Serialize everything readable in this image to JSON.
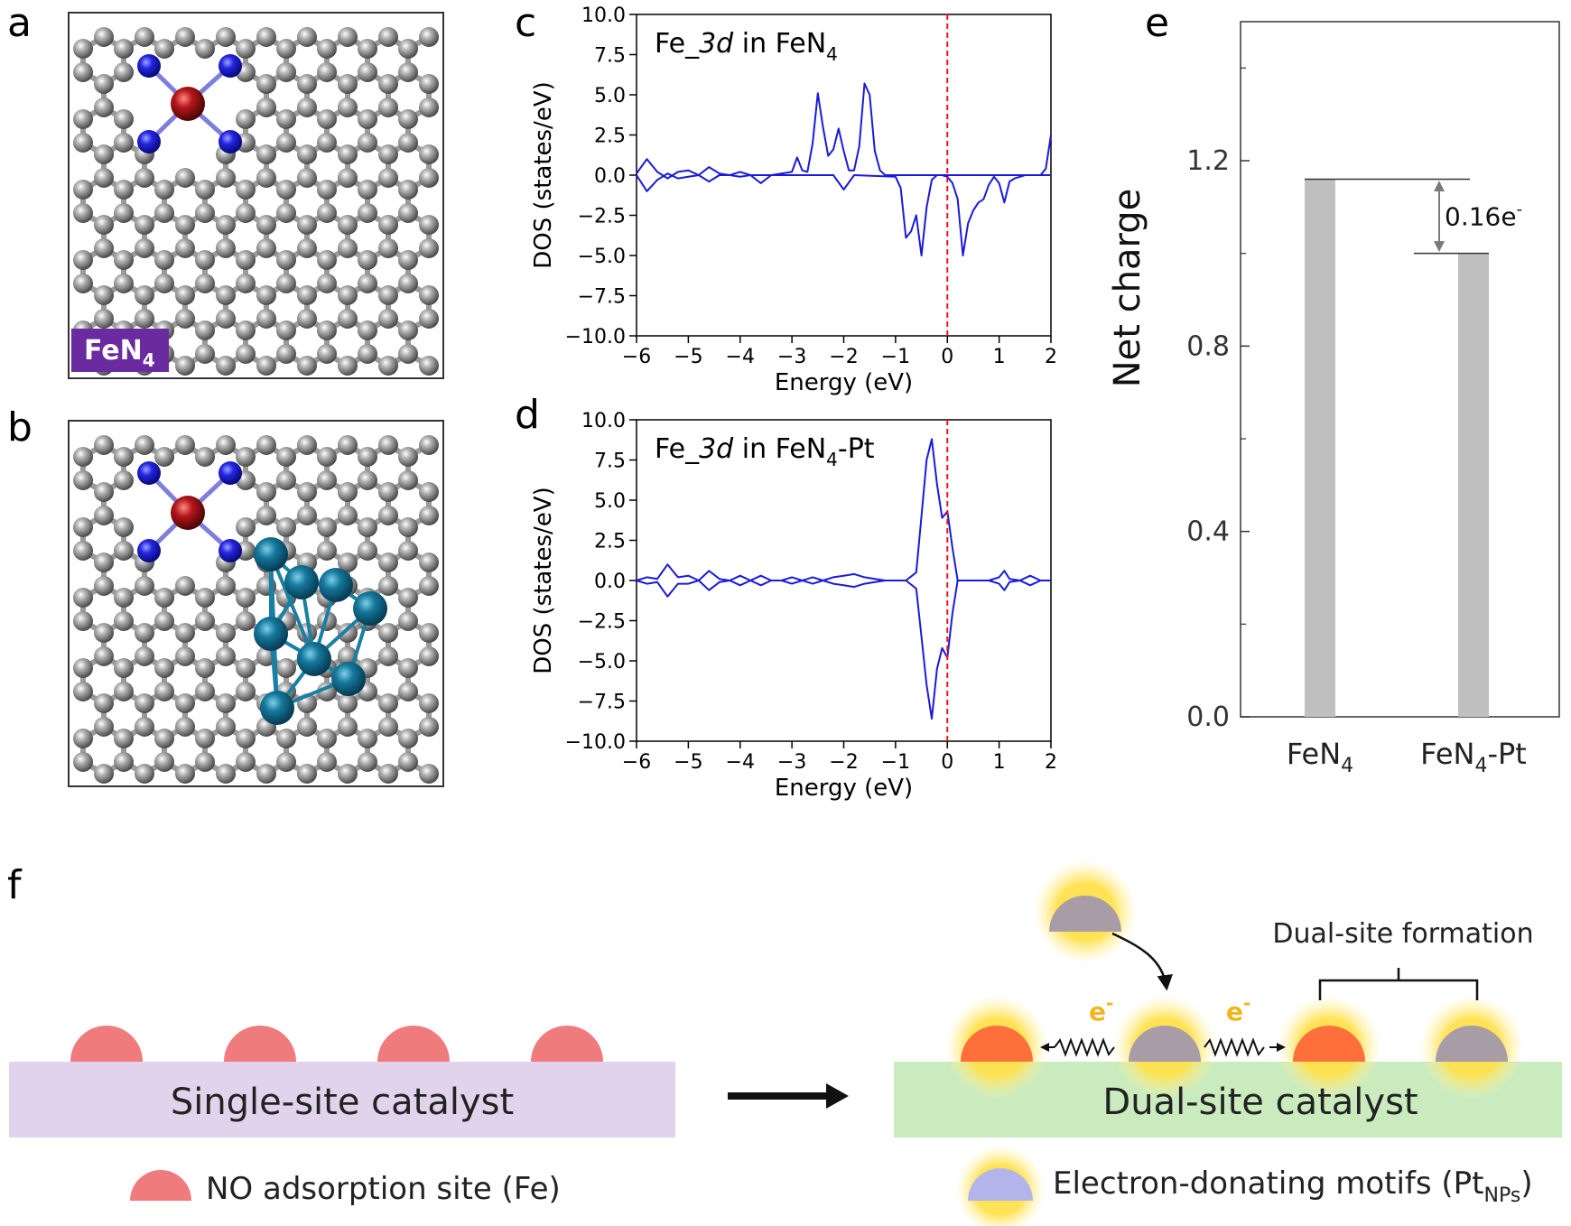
{
  "panel_labels": {
    "a": "a",
    "b": "b",
    "c": "c",
    "d": "d",
    "e": "e",
    "f": "f"
  },
  "panel_a": {
    "label_main": "FeN",
    "label_sub": "4"
  },
  "chart_data": [
    {
      "panel": "c",
      "type": "line",
      "annotation": {
        "prefix": "Fe_",
        "italic": "3d",
        "mid": " in FeN",
        "sub": "4",
        "suffix": ""
      },
      "xlabel": "Energy (eV)",
      "ylabel": "DOS (states/eV)",
      "xlim": [
        -6,
        2
      ],
      "ylim": [
        -10,
        10
      ],
      "xticks": [
        -6,
        -5,
        -4,
        -3,
        -2,
        -1,
        0,
        1,
        2
      ],
      "yticks": [
        10.0,
        7.5,
        5.0,
        2.5,
        0.0,
        -2.5,
        -5.0,
        -7.5,
        -10.0
      ],
      "xtick_labels": [
        "−6",
        "−5",
        "−4",
        "−3",
        "−2",
        "−1",
        "0",
        "1",
        "2"
      ],
      "ytick_labels": [
        "10.0",
        "7.5",
        "5.0",
        "2.5",
        "0.0",
        "−2.5",
        "−5.0",
        "−7.5",
        "−10.0"
      ],
      "fermi_level": 0,
      "line_color": "#1a1adb",
      "fermi_color": "#e8161b",
      "series": [
        {
          "name": "spin up",
          "x": [
            -6.0,
            -5.8,
            -5.6,
            -5.4,
            -5.2,
            -5.0,
            -4.8,
            -4.6,
            -4.4,
            -4.2,
            -4.0,
            -3.8,
            -3.6,
            -3.4,
            -3.2,
            -3.0,
            -2.9,
            -2.8,
            -2.7,
            -2.6,
            -2.5,
            -2.4,
            -2.3,
            -2.2,
            -2.1,
            -2.0,
            -1.9,
            -1.8,
            -1.7,
            -1.6,
            -1.5,
            -1.4,
            -1.3,
            -1.2,
            -1.1,
            -1.0,
            0.0,
            1.0,
            1.5,
            1.8,
            1.9,
            2.0
          ],
          "y": [
            0.1,
            1.0,
            0.2,
            -0.2,
            0.2,
            0.3,
            0.0,
            0.5,
            0.1,
            0.0,
            0.2,
            0.0,
            0.0,
            0.0,
            0.1,
            0.2,
            1.1,
            0.3,
            0.2,
            2.0,
            5.1,
            3.0,
            1.2,
            1.6,
            2.9,
            1.5,
            0.3,
            0.3,
            1.8,
            5.7,
            5.0,
            1.5,
            0.3,
            0.0,
            0.0,
            0.0,
            0.0,
            0.0,
            0.0,
            0.0,
            0.4,
            2.5
          ]
        },
        {
          "name": "spin down",
          "x": [
            -6.0,
            -5.8,
            -5.6,
            -5.4,
            -5.2,
            -5.0,
            -4.8,
            -4.6,
            -4.4,
            -4.2,
            -4.0,
            -3.8,
            -3.6,
            -3.4,
            -3.2,
            -3.0,
            -2.5,
            -2.2,
            -2.0,
            -1.8,
            -1.0,
            -0.9,
            -0.8,
            -0.7,
            -0.6,
            -0.5,
            -0.4,
            -0.3,
            -0.2,
            -0.1,
            0.0,
            0.1,
            0.2,
            0.3,
            0.4,
            0.5,
            0.6,
            0.7,
            0.8,
            0.9,
            1.0,
            1.1,
            1.2,
            1.3,
            1.4,
            1.5,
            1.6,
            1.7,
            1.8,
            1.9,
            2.0
          ],
          "y": [
            0.0,
            -1.0,
            -0.3,
            0.1,
            -0.2,
            -0.1,
            0.0,
            -0.4,
            0.0,
            0.0,
            -0.1,
            0.0,
            -0.5,
            0.0,
            0.0,
            0.0,
            0.0,
            0.0,
            -0.9,
            0.0,
            -0.1,
            -0.8,
            -3.9,
            -3.5,
            -2.5,
            -5.0,
            -2.0,
            -0.3,
            0.0,
            0.0,
            -0.1,
            -0.5,
            -1.5,
            -5.0,
            -3.0,
            -2.2,
            -1.7,
            -1.5,
            -0.6,
            -0.1,
            -0.5,
            -1.7,
            -0.4,
            -0.2,
            -0.1,
            0.0,
            0.0,
            0.0,
            0.0,
            0.0,
            0.0
          ]
        }
      ]
    },
    {
      "panel": "d",
      "type": "line",
      "annotation": {
        "prefix": "Fe_",
        "italic": "3d",
        "mid": " in FeN",
        "sub": "4",
        "suffix": "-Pt"
      },
      "xlabel": "Energy (eV)",
      "ylabel": "DOS (states/eV)",
      "xlim": [
        -6,
        2
      ],
      "ylim": [
        -10,
        10
      ],
      "xticks": [
        -6,
        -5,
        -4,
        -3,
        -2,
        -1,
        0,
        1,
        2
      ],
      "yticks": [
        10.0,
        7.5,
        5.0,
        2.5,
        0.0,
        -2.5,
        -5.0,
        -7.5,
        -10.0
      ],
      "xtick_labels": [
        "−6",
        "−5",
        "−4",
        "−3",
        "−2",
        "−1",
        "0",
        "1",
        "2"
      ],
      "ytick_labels": [
        "10.0",
        "7.5",
        "5.0",
        "2.5",
        "0.0",
        "−2.5",
        "−5.0",
        "−7.5",
        "−10.0"
      ],
      "fermi_level": 0,
      "line_color": "#1a1adb",
      "fermi_color": "#e8161b",
      "series": [
        {
          "name": "spin up",
          "x": [
            -6.0,
            -5.8,
            -5.6,
            -5.4,
            -5.2,
            -5.0,
            -4.8,
            -4.6,
            -4.4,
            -4.2,
            -4.0,
            -3.8,
            -3.6,
            -3.4,
            -3.2,
            -3.0,
            -2.8,
            -2.6,
            -2.4,
            -2.2,
            -2.0,
            -1.8,
            -1.6,
            -1.4,
            -1.2,
            -1.0,
            -0.8,
            -0.6,
            -0.5,
            -0.4,
            -0.3,
            -0.2,
            -0.1,
            0.0,
            0.1,
            0.2,
            0.4,
            0.6,
            0.8,
            1.0,
            1.1,
            1.2,
            1.4,
            1.6,
            1.8,
            2.0
          ],
          "y": [
            0.0,
            0.2,
            0.1,
            1.0,
            0.2,
            0.3,
            0.0,
            0.6,
            0.1,
            0.0,
            0.3,
            0.0,
            0.3,
            0.0,
            0.0,
            0.2,
            0.0,
            0.2,
            0.0,
            0.2,
            0.3,
            0.4,
            0.2,
            0.1,
            0.0,
            0.0,
            0.0,
            0.5,
            4.0,
            7.5,
            8.8,
            6.0,
            3.9,
            4.3,
            2.0,
            0.0,
            0.0,
            0.0,
            0.0,
            0.2,
            0.6,
            0.1,
            0.0,
            0.3,
            0.0,
            0.0
          ]
        },
        {
          "name": "spin down",
          "x": [
            -6.0,
            -5.8,
            -5.6,
            -5.4,
            -5.2,
            -5.0,
            -4.8,
            -4.6,
            -4.4,
            -4.2,
            -4.0,
            -3.8,
            -3.6,
            -3.4,
            -3.2,
            -3.0,
            -2.8,
            -2.6,
            -2.4,
            -2.2,
            -2.0,
            -1.8,
            -1.6,
            -1.4,
            -1.2,
            -1.0,
            -0.8,
            -0.6,
            -0.5,
            -0.4,
            -0.3,
            -0.2,
            -0.1,
            0.0,
            0.1,
            0.2,
            0.4,
            0.6,
            0.8,
            1.0,
            1.1,
            1.2,
            1.4,
            1.6,
            1.8,
            2.0
          ],
          "y": [
            0.0,
            -0.2,
            -0.1,
            -1.0,
            -0.2,
            -0.2,
            0.0,
            -0.6,
            -0.1,
            0.0,
            -0.3,
            0.0,
            -0.3,
            0.0,
            0.0,
            -0.2,
            0.0,
            -0.2,
            0.0,
            -0.2,
            -0.3,
            -0.4,
            -0.2,
            -0.1,
            0.0,
            0.0,
            0.0,
            -0.5,
            -3.5,
            -6.5,
            -8.6,
            -5.5,
            -4.2,
            -4.8,
            -2.0,
            0.0,
            0.0,
            0.0,
            0.0,
            -0.2,
            -0.6,
            -0.1,
            0.0,
            -0.3,
            0.0,
            0.0
          ]
        }
      ]
    },
    {
      "panel": "e",
      "type": "bar",
      "categories": [
        {
          "main": "FeN",
          "sub": "4",
          "suffix": ""
        },
        {
          "main": "FeN",
          "sub": "4",
          "suffix": "-Pt"
        }
      ],
      "values": [
        1.16,
        1.0
      ],
      "ylabel": "Net charge",
      "ylim": [
        0,
        1.5
      ],
      "yticks": [
        0.0,
        0.4,
        0.8,
        1.2
      ],
      "ytick_labels": [
        "0.0",
        "0.4",
        "0.8",
        "1.2"
      ],
      "bar_color": "#c0c0c0",
      "annotation": {
        "text": "0.16e",
        "sup": "-"
      }
    }
  ],
  "panel_f": {
    "single_catalyst_label": "Single-site catalyst",
    "dual_catalyst_label": "Dual-site catalyst",
    "dual_site_formation": "Dual-site formation",
    "electron_label": "e",
    "electron_sup": "-",
    "legend_fe": "NO adsorption site (Fe)",
    "legend_pt_prefix": "Electron-donating motifs (Pt",
    "legend_pt_sub": "NPs",
    "legend_pt_suffix": ")",
    "colors": {
      "fe_site": "#ef7b7d",
      "fe_active": "#ff6f3c",
      "pt_site": "#a89ca6",
      "single_bar": "#e2d3ec",
      "dual_bar": "#c9ebbd",
      "glow": "#ffd84d",
      "legend_pt": "#b3b5ea",
      "electron": "#f2b51c"
    }
  }
}
